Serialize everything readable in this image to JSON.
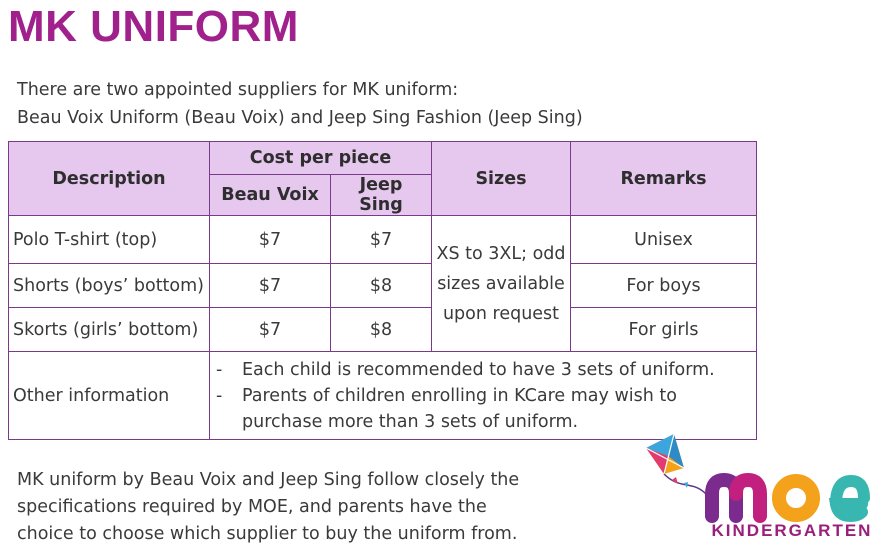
{
  "title": "MK UNIFORM",
  "intro": [
    "There are two appointed suppliers for MK uniform:",
    "Beau Voix Uniform (Beau Voix) and Jeep Sing Fashion (Jeep Sing)"
  ],
  "table": {
    "headers": {
      "description": "Description",
      "cost": "Cost per piece",
      "beau_voix": "Beau Voix",
      "jeep_sing": "Jeep Sing",
      "sizes": "Sizes",
      "remarks": "Remarks"
    },
    "rows": [
      {
        "description": "Polo T-shirt (top)",
        "beau_voix": "$7",
        "jeep_sing": "$7",
        "remarks": "Unisex"
      },
      {
        "description": "Shorts (boys’ bottom)",
        "beau_voix": "$7",
        "jeep_sing": "$8",
        "remarks": "For boys"
      },
      {
        "description": "Skorts (girls’ bottom)",
        "beau_voix": "$7",
        "jeep_sing": "$8",
        "remarks": "For girls"
      }
    ],
    "sizes_lines": [
      "XS to 3XL; odd",
      "sizes available",
      "upon request"
    ],
    "other_label": "Other information",
    "other_items": [
      "Each child is recommended to have 3 sets of uniform.",
      "Parents of children enrolling in KCare may wish to purchase more than 3 sets of uniform."
    ]
  },
  "footer": [
    "MK uniform by Beau Voix and Jeep Sing follow closely the",
    "specifications required by MOE, and parents have the",
    "choice to choose which supplier to buy the uniform from."
  ],
  "logo": {
    "word": "MOE",
    "sub": "KINDERGARTEN"
  },
  "colors": {
    "title": "#a0208c",
    "header_bg": "#e6c7ee",
    "border": "#7a3a8c"
  }
}
